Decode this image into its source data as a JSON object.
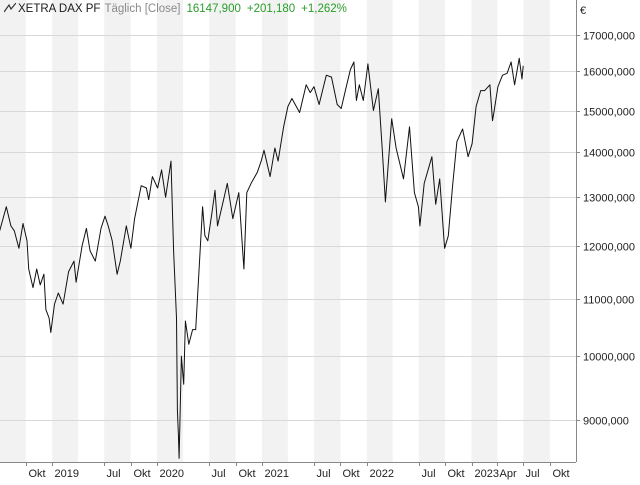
{
  "header": {
    "instrument": "XETRA DAX PF",
    "mode": "Täglich [Close]",
    "last": "16147,900",
    "change": "+201,180",
    "change_pct": "+1,262%",
    "currency": "€"
  },
  "colors": {
    "line": "#111111",
    "grid": "#d8d8d8",
    "band": "#f2f2f2",
    "positive": "#2a9d2a",
    "text": "#222222",
    "muted": "#8a8a8a"
  },
  "chart_data": {
    "type": "line",
    "title": "",
    "xlabel": "",
    "ylabel": "",
    "y_scale": "log",
    "grid": true,
    "xlim": [
      "2018-07-03",
      "2023-12-31"
    ],
    "ylim": [
      8400,
      18000
    ],
    "y_ticks": [
      9000,
      10000,
      11000,
      12000,
      13000,
      14000,
      15000,
      16000,
      17000
    ],
    "y_tick_labels": [
      "9000,000",
      "10000,000",
      "11000,000",
      "12000,000",
      "13000,000",
      "14000,000",
      "15000,000",
      "16000,000",
      "17000,000"
    ],
    "x_ticks": [
      {
        "date": "2018-10-01",
        "label": "Okt"
      },
      {
        "date": "2019-01-01",
        "label": "2019"
      },
      {
        "date": "2019-07-01",
        "label": "Jul"
      },
      {
        "date": "2019-10-01",
        "label": "Okt"
      },
      {
        "date": "2020-01-01",
        "label": "2020"
      },
      {
        "date": "2020-07-01",
        "label": "Jul"
      },
      {
        "date": "2020-10-01",
        "label": "Okt"
      },
      {
        "date": "2021-01-01",
        "label": "2021"
      },
      {
        "date": "2021-07-01",
        "label": "Jul"
      },
      {
        "date": "2021-10-01",
        "label": "Okt"
      },
      {
        "date": "2022-01-01",
        "label": "2022"
      },
      {
        "date": "2022-07-01",
        "label": "Jul"
      },
      {
        "date": "2022-10-01",
        "label": "Okt"
      },
      {
        "date": "2023-01-01",
        "label": "2023"
      },
      {
        "date": "2023-04-01",
        "label": "Apr"
      },
      {
        "date": "2023-07-01",
        "label": "Jul"
      },
      {
        "date": "2023-10-01",
        "label": "Okt"
      }
    ],
    "bands": [
      [
        "2018-07-03",
        "2018-10-01"
      ],
      [
        "2019-01-01",
        "2019-04-01"
      ],
      [
        "2019-07-01",
        "2019-10-01"
      ],
      [
        "2020-01-01",
        "2020-04-01"
      ],
      [
        "2020-07-01",
        "2020-10-01"
      ],
      [
        "2021-01-01",
        "2021-04-01"
      ],
      [
        "2021-07-01",
        "2021-10-01"
      ],
      [
        "2022-01-01",
        "2022-04-01"
      ],
      [
        "2022-07-01",
        "2022-10-01"
      ],
      [
        "2023-01-01",
        "2023-04-01"
      ],
      [
        "2023-07-01",
        "2023-10-01"
      ]
    ],
    "series": [
      {
        "points": [
          [
            "2018-07-02",
            12300
          ],
          [
            "2018-07-25",
            12800
          ],
          [
            "2018-08-10",
            12400
          ],
          [
            "2018-08-22",
            12300
          ],
          [
            "2018-09-07",
            11950
          ],
          [
            "2018-09-21",
            12450
          ],
          [
            "2018-10-05",
            12100
          ],
          [
            "2018-10-11",
            11550
          ],
          [
            "2018-10-26",
            11200
          ],
          [
            "2018-11-08",
            11550
          ],
          [
            "2018-11-20",
            11250
          ],
          [
            "2018-12-03",
            11450
          ],
          [
            "2018-12-10",
            10800
          ],
          [
            "2018-12-21",
            10650
          ],
          [
            "2018-12-27",
            10400
          ],
          [
            "2019-01-09",
            10900
          ],
          [
            "2019-01-22",
            11100
          ],
          [
            "2019-02-08",
            10900
          ],
          [
            "2019-02-27",
            11500
          ],
          [
            "2019-03-18",
            11700
          ],
          [
            "2019-03-25",
            11300
          ],
          [
            "2019-04-15",
            12000
          ],
          [
            "2019-04-30",
            12350
          ],
          [
            "2019-05-13",
            11900
          ],
          [
            "2019-05-31",
            11700
          ],
          [
            "2019-06-20",
            12350
          ],
          [
            "2019-07-04",
            12600
          ],
          [
            "2019-07-15",
            12400
          ],
          [
            "2019-07-29",
            12100
          ],
          [
            "2019-08-15",
            11450
          ],
          [
            "2019-08-26",
            11700
          ],
          [
            "2019-09-16",
            12400
          ],
          [
            "2019-10-02",
            11950
          ],
          [
            "2019-10-15",
            12550
          ],
          [
            "2019-11-07",
            13250
          ],
          [
            "2019-11-25",
            13200
          ],
          [
            "2019-12-03",
            12950
          ],
          [
            "2019-12-16",
            13450
          ],
          [
            "2020-01-03",
            13200
          ],
          [
            "2020-01-17",
            13600
          ],
          [
            "2020-01-31",
            13000
          ],
          [
            "2020-02-19",
            13800
          ],
          [
            "2020-02-28",
            11900
          ],
          [
            "2020-03-09",
            10650
          ],
          [
            "2020-03-12",
            9150
          ],
          [
            "2020-03-16",
            8750
          ],
          [
            "2020-03-18",
            8450
          ],
          [
            "2020-03-26",
            10000
          ],
          [
            "2020-04-03",
            9550
          ],
          [
            "2020-04-09",
            10600
          ],
          [
            "2020-04-21",
            10200
          ],
          [
            "2020-05-04",
            10450
          ],
          [
            "2020-05-15",
            10450
          ],
          [
            "2020-06-08",
            12800
          ],
          [
            "2020-06-16",
            12200
          ],
          [
            "2020-06-26",
            12100
          ],
          [
            "2020-07-10",
            12650
          ],
          [
            "2020-07-21",
            13150
          ],
          [
            "2020-07-30",
            12400
          ],
          [
            "2020-08-20",
            12950
          ],
          [
            "2020-09-02",
            13300
          ],
          [
            "2020-09-21",
            12550
          ],
          [
            "2020-10-12",
            13100
          ],
          [
            "2020-10-30",
            11550
          ],
          [
            "2020-11-09",
            13100
          ],
          [
            "2020-11-24",
            13300
          ],
          [
            "2020-12-16",
            13550
          ],
          [
            "2020-12-29",
            13800
          ],
          [
            "2021-01-08",
            14050
          ],
          [
            "2021-01-29",
            13450
          ],
          [
            "2021-02-15",
            14100
          ],
          [
            "2021-02-26",
            13800
          ],
          [
            "2021-03-17",
            14600
          ],
          [
            "2021-04-01",
            15100
          ],
          [
            "2021-04-15",
            15300
          ],
          [
            "2021-05-12",
            14950
          ],
          [
            "2021-06-04",
            15650
          ],
          [
            "2021-06-18",
            15450
          ],
          [
            "2021-07-01",
            15600
          ],
          [
            "2021-07-19",
            15150
          ],
          [
            "2021-08-13",
            15900
          ],
          [
            "2021-08-31",
            15850
          ],
          [
            "2021-09-20",
            15150
          ],
          [
            "2021-10-04",
            15050
          ],
          [
            "2021-10-20",
            15550
          ],
          [
            "2021-11-05",
            16050
          ],
          [
            "2021-11-17",
            16250
          ],
          [
            "2021-11-26",
            15250
          ],
          [
            "2021-12-06",
            15650
          ],
          [
            "2021-12-20",
            15250
          ],
          [
            "2022-01-05",
            16200
          ],
          [
            "2022-01-24",
            15000
          ],
          [
            "2022-02-10",
            15550
          ],
          [
            "2022-02-24",
            14050
          ],
          [
            "2022-03-07",
            12900
          ],
          [
            "2022-03-29",
            14800
          ],
          [
            "2022-04-13",
            14100
          ],
          [
            "2022-05-09",
            13400
          ],
          [
            "2022-05-30",
            14600
          ],
          [
            "2022-06-16",
            13100
          ],
          [
            "2022-06-30",
            12800
          ],
          [
            "2022-07-05",
            12400
          ],
          [
            "2022-07-20",
            13300
          ],
          [
            "2022-08-16",
            13900
          ],
          [
            "2022-08-29",
            12850
          ],
          [
            "2022-09-12",
            13400
          ],
          [
            "2022-09-29",
            11950
          ],
          [
            "2022-10-12",
            12200
          ],
          [
            "2022-10-27",
            13250
          ],
          [
            "2022-11-11",
            14250
          ],
          [
            "2022-12-01",
            14550
          ],
          [
            "2022-12-20",
            13900
          ],
          [
            "2023-01-03",
            14200
          ],
          [
            "2023-01-17",
            15100
          ],
          [
            "2023-02-02",
            15500
          ],
          [
            "2023-02-16",
            15500
          ],
          [
            "2023-03-06",
            15650
          ],
          [
            "2023-03-15",
            14750
          ],
          [
            "2023-03-20",
            14950
          ],
          [
            "2023-04-03",
            15600
          ],
          [
            "2023-04-19",
            15900
          ],
          [
            "2023-05-05",
            15950
          ],
          [
            "2023-05-19",
            16250
          ],
          [
            "2023-05-31",
            15650
          ],
          [
            "2023-06-16",
            16350
          ],
          [
            "2023-06-26",
            15800
          ],
          [
            "2023-06-30",
            16147.9
          ]
        ]
      }
    ]
  }
}
